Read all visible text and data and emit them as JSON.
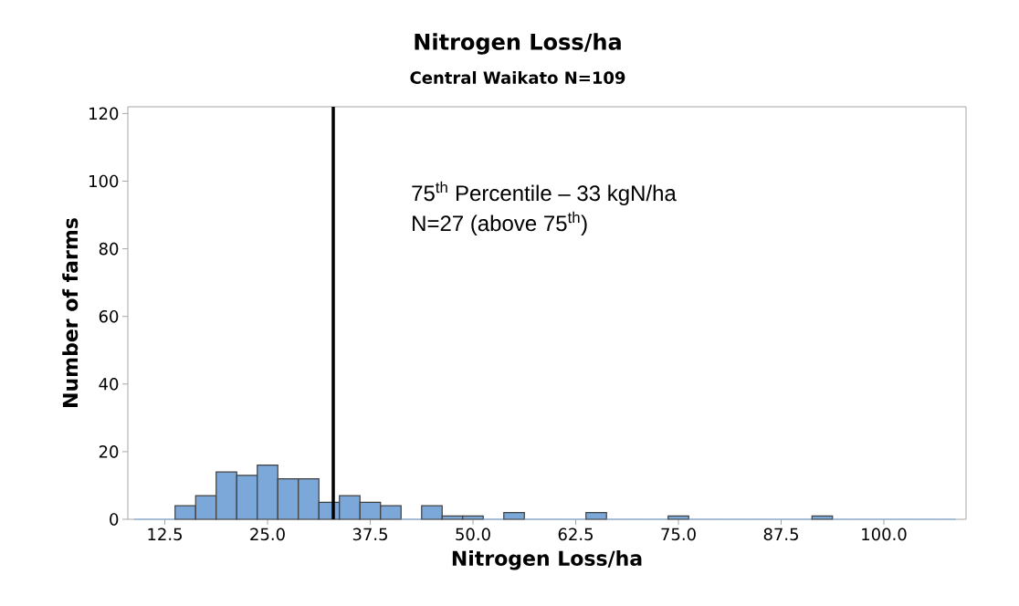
{
  "chart_data": {
    "type": "histogram",
    "title": "Nitrogen Loss/ha",
    "subtitle": "Central Waikato N=109",
    "xlabel": "Nitrogen Loss/ha",
    "ylabel": "Number of farms",
    "bins": [
      8.75,
      11.25,
      13.75,
      16.25,
      18.75,
      21.25,
      23.75,
      26.25,
      28.75,
      31.25,
      33.75,
      36.25,
      38.75,
      41.25,
      43.75,
      46.25,
      48.75,
      51.25,
      53.75,
      56.25,
      58.75,
      61.25,
      63.75,
      66.25,
      68.75,
      71.25,
      73.75,
      76.25,
      78.75,
      81.25,
      83.75,
      86.25,
      88.75,
      91.25,
      93.75,
      96.25,
      98.75,
      101.25,
      103.75,
      106.25,
      108.75
    ],
    "values": [
      0,
      0,
      4,
      7,
      14,
      13,
      16,
      12,
      12,
      5,
      7,
      5,
      4,
      0,
      4,
      1,
      1,
      0,
      2,
      0,
      0,
      0,
      2,
      0,
      0,
      0,
      1,
      0,
      0,
      0,
      0,
      0,
      0,
      1,
      0,
      0,
      0,
      0,
      0,
      0
    ],
    "color": "#7ba7d9",
    "xlim": [
      8,
      110
    ],
    "ylim": [
      0,
      122
    ],
    "xticks": [
      12.5,
      {
        "value": 25,
        "label": "25.0"
      },
      37.5,
      {
        "value": 50,
        "label": "50.0"
      },
      62.5,
      {
        "value": 75,
        "label": "75.0"
      },
      87.5,
      {
        "value": 100,
        "label": "100.0"
      }
    ],
    "yticks": [
      0,
      20,
      40,
      60,
      80,
      100,
      120
    ],
    "ref_lines": [
      {
        "axis": "x",
        "value": 33,
        "color": "#000000"
      }
    ],
    "annotations": [
      "75$^{th}$ Percentile – 33 kgN/ha",
      "N=27 (above 75$^{th}$)"
    ]
  }
}
